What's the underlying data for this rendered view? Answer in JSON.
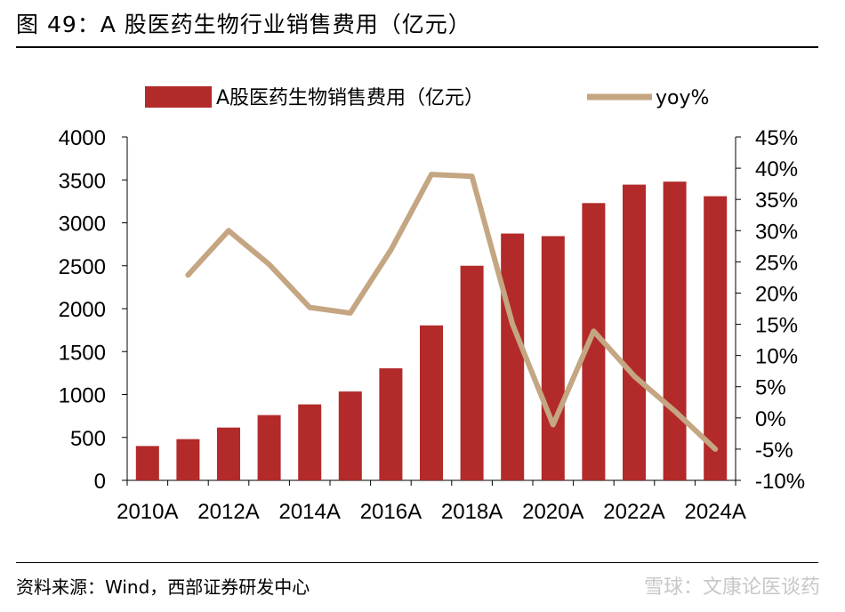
{
  "title": "图 49：A 股医药生物行业销售费用（亿元）",
  "source": "资料来源：Wind，西部证券研发中心",
  "watermark": "雪球：文康论医谈药",
  "colors": {
    "bar": "#B22A2A",
    "line": "#C4A682"
  },
  "chart_data": {
    "type": "bar",
    "categories": [
      "2010A",
      "2011A",
      "2012A",
      "2013A",
      "2014A",
      "2015A",
      "2016A",
      "2017A",
      "2018A",
      "2019A",
      "2020A",
      "2021A",
      "2022A",
      "2023A",
      "2024A"
    ],
    "x_tick_labels": [
      "2010A",
      "2012A",
      "2014A",
      "2016A",
      "2018A",
      "2020A",
      "2022A",
      "2024A"
    ],
    "series": [
      {
        "name": "A股医药生物销售费用（亿元）",
        "type": "bar",
        "axis": "left",
        "values": [
          400,
          480,
          615,
          760,
          885,
          1035,
          1305,
          1805,
          2500,
          2875,
          2845,
          3230,
          3445,
          3480,
          3310
        ]
      },
      {
        "name": "yoy%",
        "type": "line",
        "axis": "right",
        "values": [
          null,
          22.9,
          30.0,
          24.6,
          17.7,
          16.8,
          26.9,
          39.0,
          38.7,
          15.0,
          -1.1,
          13.9,
          6.7,
          1.1,
          -5.0
        ]
      }
    ],
    "y_left": {
      "min": 0,
      "max": 4000,
      "ticks": [
        "0",
        "500",
        "1000",
        "1500",
        "2000",
        "2500",
        "3000",
        "3500",
        "4000"
      ]
    },
    "y_right": {
      "min": -10,
      "max": 45,
      "ticks": [
        "-10%",
        "-5%",
        "0%",
        "5%",
        "10%",
        "15%",
        "20%",
        "25%",
        "30%",
        "35%",
        "40%",
        "45%"
      ]
    },
    "legend_position": "top",
    "grid": false
  }
}
